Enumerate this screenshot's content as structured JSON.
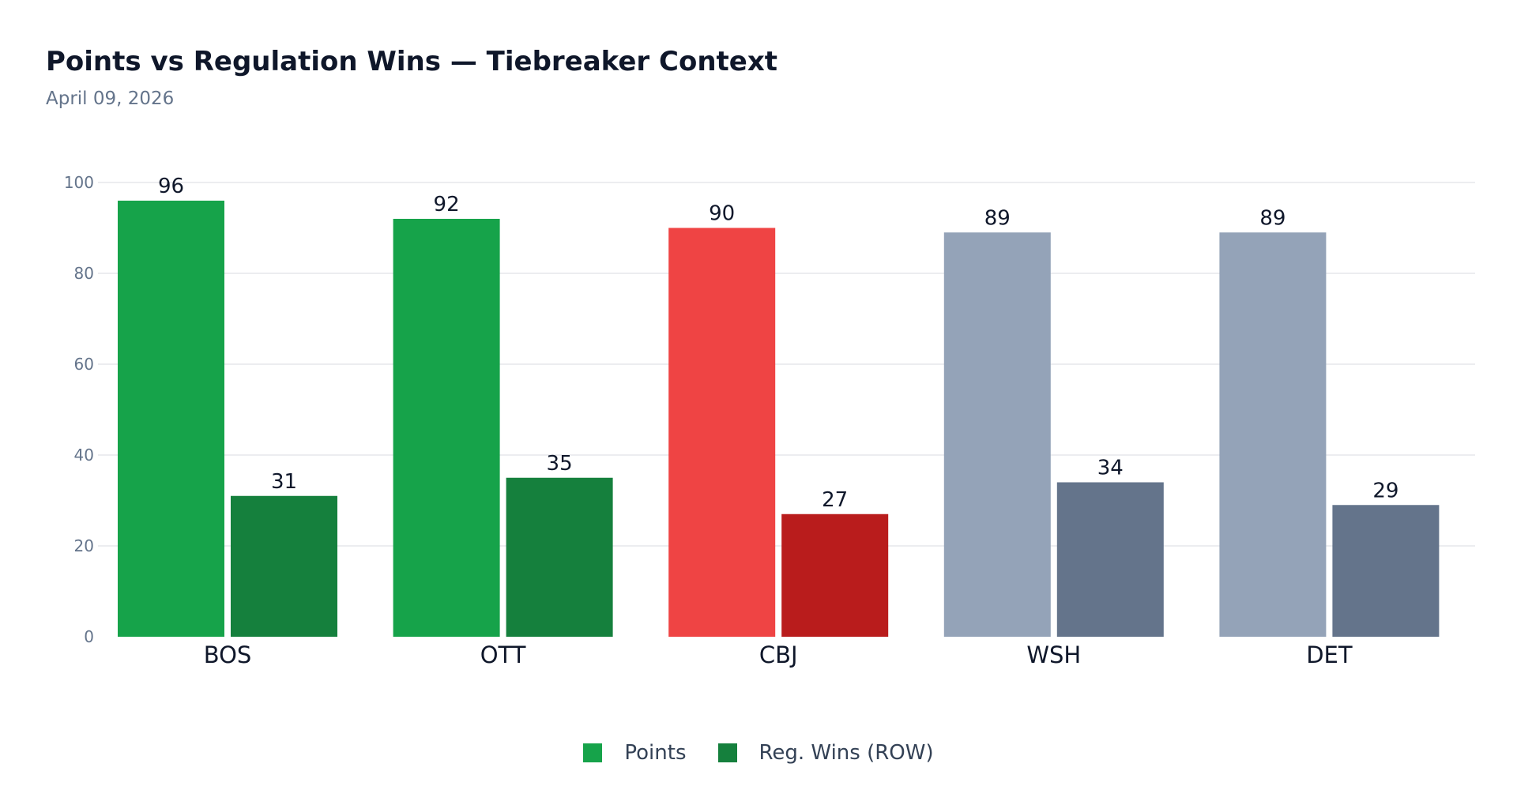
{
  "title": "Points vs Regulation Wins — Tiebreaker Context",
  "subtitle": "April 09, 2026",
  "colors": {
    "grid": "#e5e7eb",
    "points_green": "#16a34a",
    "row_green": "#15803d",
    "points_red": "#ef4444",
    "row_red": "#b91c1c",
    "points_gray": "#94a3b8",
    "row_gray": "#64748b"
  },
  "chart_data": {
    "type": "bar",
    "title": "Points vs Regulation Wins — Tiebreaker Context",
    "subtitle": "April 09, 2026",
    "categories": [
      "BOS",
      "OTT",
      "CBJ",
      "WSH",
      "DET"
    ],
    "series": [
      {
        "name": "Points",
        "values": [
          96,
          92,
          90,
          89,
          89
        ],
        "colors": [
          "#16a34a",
          "#16a34a",
          "#ef4444",
          "#94a3b8",
          "#94a3b8"
        ]
      },
      {
        "name": "Reg. Wins (ROW)",
        "values": [
          31,
          35,
          27,
          34,
          29
        ],
        "colors": [
          "#15803d",
          "#15803d",
          "#b91c1c",
          "#64748b",
          "#64748b"
        ]
      }
    ],
    "yticks": [
      0,
      20,
      40,
      60,
      80,
      100
    ],
    "ylim": [
      0,
      100
    ],
    "grid": true,
    "legend": "bottom-center"
  },
  "legend": {
    "items": [
      {
        "label": "Points",
        "color": "#16a34a"
      },
      {
        "label": "Reg. Wins (ROW)",
        "color": "#15803d"
      }
    ]
  }
}
